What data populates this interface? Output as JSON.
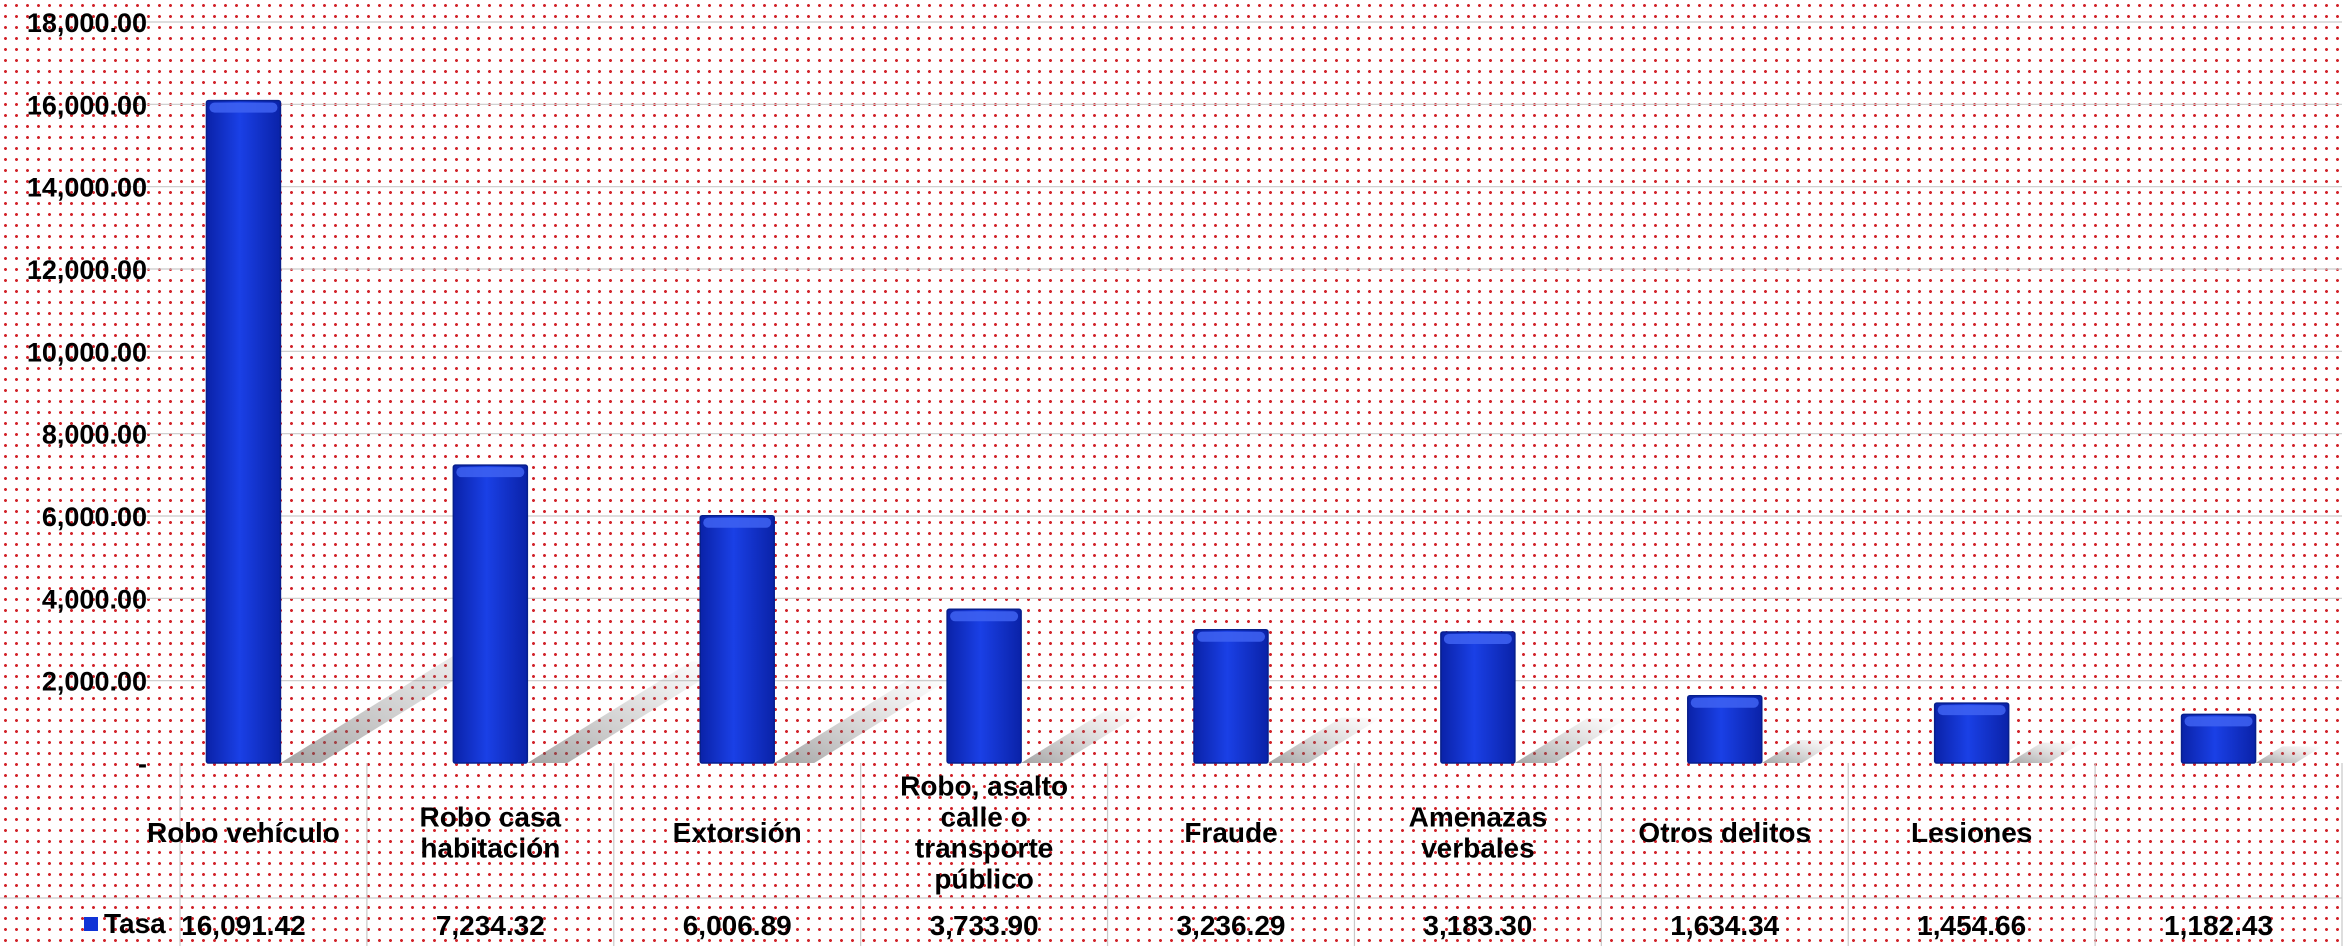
{
  "chart_data": {
    "type": "bar",
    "categories": [
      "Robo vehículo",
      "Robo casa habitación",
      "Extorsión",
      "Robo, asalto calle o transporte público",
      "Fraude",
      "Amenazas verbales",
      "Otros delitos",
      "Lesiones",
      ""
    ],
    "category_lines": [
      [
        "Robo vehículo"
      ],
      [
        "Robo casa",
        "habitación"
      ],
      [
        "Extorsión"
      ],
      [
        "Robo, asalto",
        "calle o",
        "transporte",
        "público"
      ],
      [
        "Fraude"
      ],
      [
        "Amenazas",
        "verbales"
      ],
      [
        "Otros delitos"
      ],
      [
        "Lesiones"
      ],
      []
    ],
    "series": [
      {
        "name": "Tasa",
        "values": [
          16091.42,
          7234.32,
          6006.89,
          3733.9,
          3236.29,
          3183.3,
          1634.34,
          1454.66,
          1182.43
        ],
        "labels": [
          "16,091.42",
          "7,234.32",
          "6,006.89",
          "3,733.90",
          "3,236.29",
          "3,183.30",
          "1,634.34",
          "1,454.66",
          "1,182.43"
        ]
      }
    ],
    "y_ticks": [
      {
        "value": 0,
        "label": "-"
      },
      {
        "value": 2000,
        "label": "2,000.00"
      },
      {
        "value": 4000,
        "label": "4,000.00"
      },
      {
        "value": 6000,
        "label": "6,000.00"
      },
      {
        "value": 8000,
        "label": "8,000.00"
      },
      {
        "value": 10000,
        "label": "10,000.00"
      },
      {
        "value": 12000,
        "label": "12,000.00"
      },
      {
        "value": 14000,
        "label": "14,000.00"
      },
      {
        "value": 16000,
        "label": "16,000.00"
      },
      {
        "value": 18000,
        "label": "18,000.00"
      }
    ],
    "ylim": [
      0,
      18000
    ],
    "grid": true,
    "data_table": true,
    "legend": "data-table-left",
    "title": "",
    "xlabel": "",
    "ylabel": "",
    "colors": {
      "bar": "#1033d6",
      "bar_top": "#3f63f2",
      "bar_edge": "#071f8c",
      "legend_key": "#1033d6",
      "grid": "#c9c9c9",
      "shadow": "#6e6e6e",
      "dots": "#d2232a"
    }
  }
}
